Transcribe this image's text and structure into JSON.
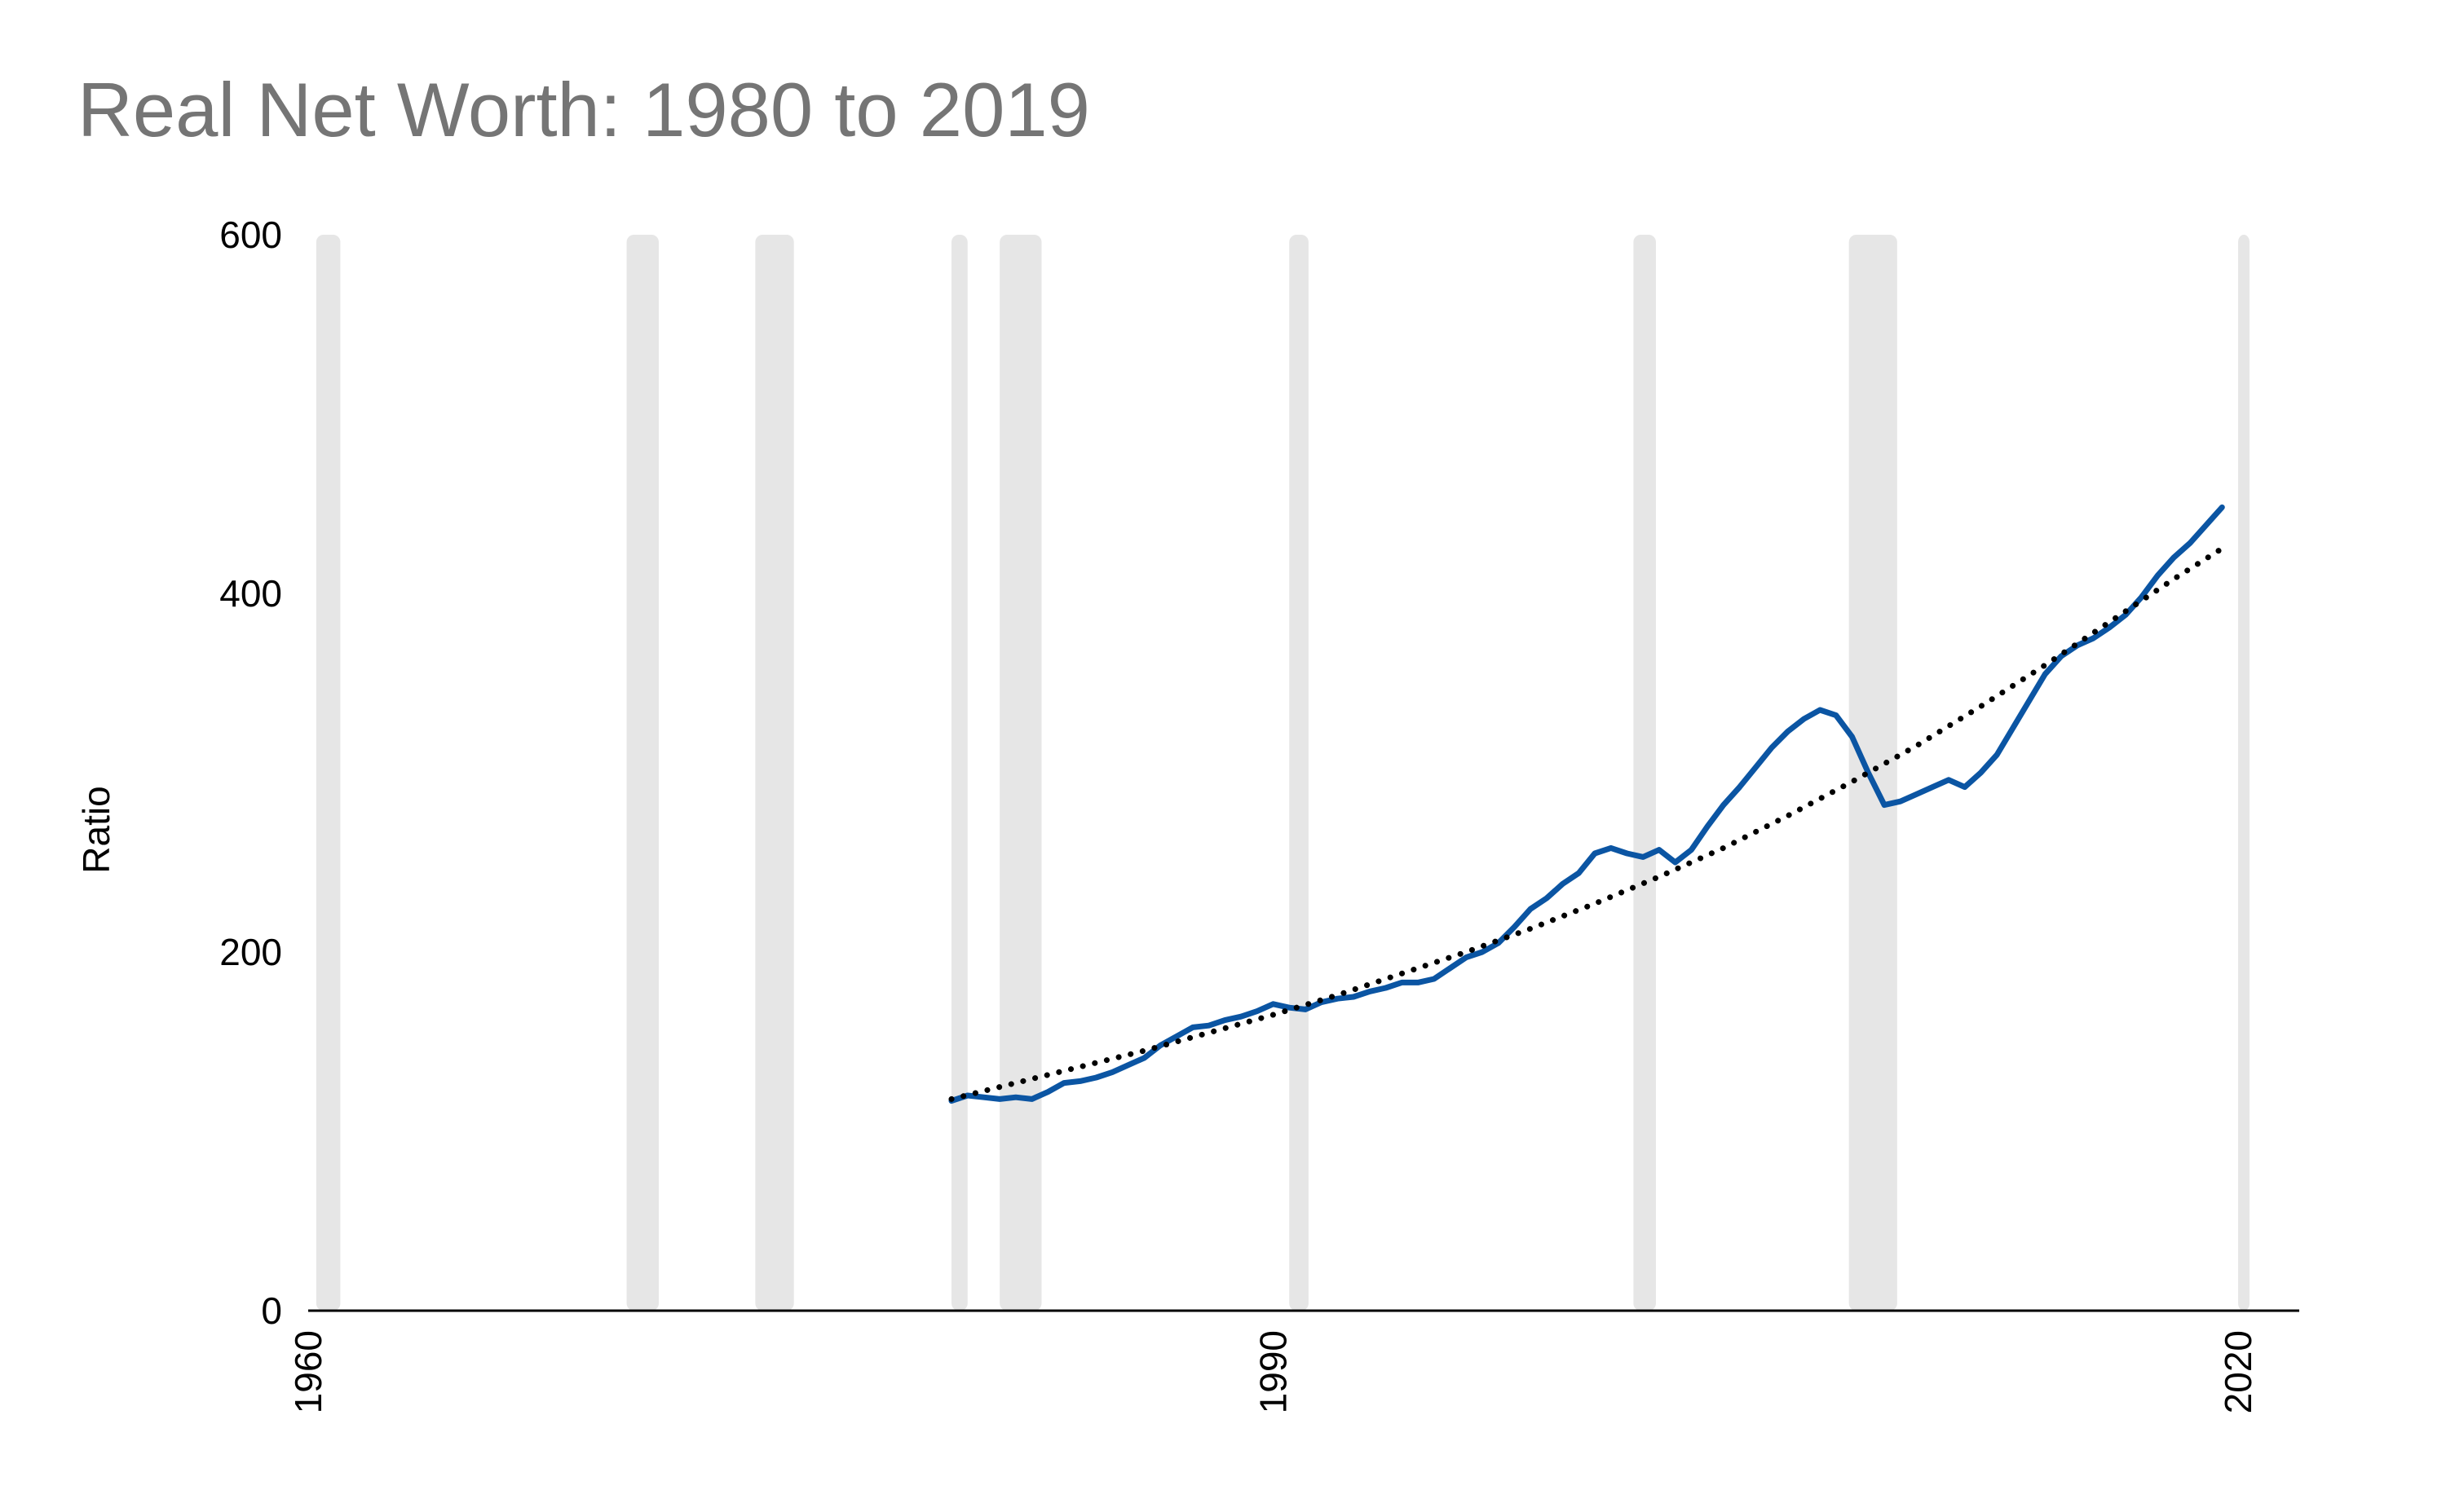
{
  "chart_data": {
    "type": "line",
    "title": "Real Net Worth: 1980 to 2019",
    "xlabel": "",
    "ylabel": "Ratio",
    "xlim": [
      1960,
      2021.9
    ],
    "ylim": [
      0,
      600
    ],
    "x_ticks": [
      "1960",
      "1990",
      "2020"
    ],
    "y_ticks": [
      "0",
      "200",
      "400",
      "600"
    ],
    "grid": false,
    "legend": "none",
    "recession_shading": [
      [
        1960.25,
        1961.0
      ],
      [
        1969.9,
        1970.9
      ],
      [
        1973.9,
        1975.1
      ],
      [
        1980.0,
        1980.5
      ],
      [
        1981.5,
        1982.8
      ],
      [
        1990.5,
        1991.1
      ],
      [
        2001.2,
        2001.9
      ],
      [
        2007.9,
        2009.4
      ],
      [
        2020.0,
        2020.3
      ]
    ],
    "series": [
      {
        "color": "#0b55a3",
        "style": "solid",
        "points": [
          [
            1980.0,
            117
          ],
          [
            1980.5,
            120
          ],
          [
            1981.0,
            119
          ],
          [
            1981.5,
            118
          ],
          [
            1982.0,
            119
          ],
          [
            1982.5,
            118
          ],
          [
            1983.0,
            122
          ],
          [
            1983.5,
            127
          ],
          [
            1984.0,
            128
          ],
          [
            1984.5,
            130
          ],
          [
            1985.0,
            133
          ],
          [
            1985.5,
            137
          ],
          [
            1986.0,
            141
          ],
          [
            1986.5,
            148
          ],
          [
            1987.0,
            153
          ],
          [
            1987.5,
            158
          ],
          [
            1988.0,
            159
          ],
          [
            1988.5,
            162
          ],
          [
            1989.0,
            164
          ],
          [
            1989.5,
            167
          ],
          [
            1990.0,
            171
          ],
          [
            1990.5,
            169
          ],
          [
            1991.0,
            168
          ],
          [
            1991.5,
            172
          ],
          [
            1992.0,
            174
          ],
          [
            1992.5,
            175
          ],
          [
            1993.0,
            178
          ],
          [
            1993.5,
            180
          ],
          [
            1994.0,
            183
          ],
          [
            1994.5,
            183
          ],
          [
            1995.0,
            185
          ],
          [
            1995.5,
            191
          ],
          [
            1996.0,
            197
          ],
          [
            1996.5,
            200
          ],
          [
            1997.0,
            205
          ],
          [
            1997.5,
            214
          ],
          [
            1998.0,
            224
          ],
          [
            1998.5,
            230
          ],
          [
            1999.0,
            238
          ],
          [
            1999.5,
            244
          ],
          [
            2000.0,
            255
          ],
          [
            2000.5,
            258
          ],
          [
            2001.0,
            255
          ],
          [
            2001.5,
            253
          ],
          [
            2002.0,
            257
          ],
          [
            2002.5,
            250
          ],
          [
            2003.0,
            257
          ],
          [
            2003.5,
            270
          ],
          [
            2004.0,
            282
          ],
          [
            2004.5,
            292
          ],
          [
            2005.0,
            303
          ],
          [
            2005.5,
            314
          ],
          [
            2006.0,
            323
          ],
          [
            2006.5,
            330
          ],
          [
            2007.0,
            335
          ],
          [
            2007.5,
            332
          ],
          [
            2008.0,
            320
          ],
          [
            2008.5,
            300
          ],
          [
            2009.0,
            282
          ],
          [
            2009.5,
            284
          ],
          [
            2010.0,
            288
          ],
          [
            2010.5,
            292
          ],
          [
            2011.0,
            296
          ],
          [
            2011.5,
            292
          ],
          [
            2012.0,
            300
          ],
          [
            2012.5,
            310
          ],
          [
            2013.0,
            325
          ],
          [
            2013.5,
            340
          ],
          [
            2014.0,
            355
          ],
          [
            2014.5,
            365
          ],
          [
            2015.0,
            371
          ],
          [
            2015.5,
            375
          ],
          [
            2016.0,
            381
          ],
          [
            2016.5,
            388
          ],
          [
            2017.0,
            398
          ],
          [
            2017.5,
            410
          ],
          [
            2018.0,
            420
          ],
          [
            2018.5,
            428
          ],
          [
            2019.0,
            438
          ],
          [
            2019.5,
            448
          ]
        ]
      },
      {
        "color": "#000000",
        "style": "dotted",
        "points": [
          [
            1980.0,
            118
          ],
          [
            1982.0,
            127
          ],
          [
            1984.0,
            136
          ],
          [
            1986.0,
            145
          ],
          [
            1988.0,
            155
          ],
          [
            1990.0,
            165
          ],
          [
            1992.0,
            176
          ],
          [
            1994.0,
            188
          ],
          [
            1996.0,
            200
          ],
          [
            1998.0,
            213
          ],
          [
            2000.0,
            227
          ],
          [
            2002.0,
            242
          ],
          [
            2004.0,
            258
          ],
          [
            2006.0,
            276
          ],
          [
            2008.0,
            295
          ],
          [
            2010.0,
            315
          ],
          [
            2012.0,
            337
          ],
          [
            2014.0,
            360
          ],
          [
            2016.0,
            384
          ],
          [
            2018.0,
            408
          ],
          [
            2019.5,
            425
          ]
        ]
      }
    ]
  }
}
